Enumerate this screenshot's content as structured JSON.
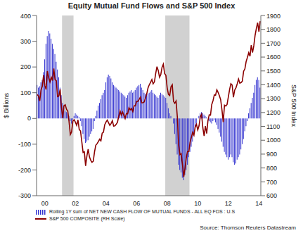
{
  "chart_data": {
    "type": "combo",
    "title": "Equity Mutual Fund Flows and S&P 500 Index",
    "y_label": "$ Billions",
    "y2_label": "S&P 500 Index",
    "source": "Source: Thomson Reuters Datastream",
    "legend": "bottom",
    "grid": false,
    "categories": [
      null,
      null,
      null,
      null,
      null,
      null,
      "00",
      null,
      null,
      null,
      null,
      null,
      null,
      null,
      null,
      null,
      null,
      null,
      null,
      null,
      null,
      null,
      null,
      null,
      null,
      null,
      null,
      null,
      null,
      null,
      "02",
      null,
      null,
      null,
      null,
      null,
      null,
      null,
      null,
      null,
      null,
      null,
      null,
      null,
      null,
      null,
      null,
      null,
      null,
      null,
      null,
      null,
      null,
      null,
      "04",
      null,
      null,
      null,
      null,
      null,
      null,
      null,
      null,
      null,
      null,
      null,
      null,
      null,
      null,
      null,
      null,
      null,
      null,
      null,
      null,
      null,
      null,
      null,
      "06",
      null,
      null,
      null,
      null,
      null,
      null,
      null,
      null,
      null,
      null,
      null,
      null,
      null,
      null,
      null,
      null,
      null,
      null,
      null,
      null,
      null,
      null,
      null,
      "08",
      null,
      null,
      null,
      null,
      null,
      null,
      null,
      null,
      null,
      null,
      null,
      null,
      null,
      null,
      null,
      null,
      null,
      null,
      null,
      null,
      null,
      null,
      null,
      "10",
      null,
      null,
      null,
      null,
      null,
      null,
      null,
      null,
      null,
      null,
      null,
      null,
      null,
      null,
      null,
      null,
      null,
      null,
      null,
      null,
      null,
      null,
      null,
      "12",
      null,
      null,
      null,
      null,
      null,
      null,
      null,
      null,
      null,
      null,
      null,
      null,
      null,
      null,
      null,
      null,
      null,
      null,
      null,
      null,
      null,
      null,
      null,
      "14",
      null
    ],
    "shaded_periods": [
      [
        20,
        28
      ],
      [
        101,
        119
      ]
    ],
    "ylim": [
      -300,
      400
    ],
    "yticks": [
      -300,
      -200,
      -100,
      0,
      100,
      200,
      300,
      400
    ],
    "y2lim": [
      600,
      1900
    ],
    "y2ticks": [
      600,
      700,
      800,
      900,
      1000,
      1100,
      1200,
      1300,
      1400,
      1500,
      1600,
      1700,
      1800,
      1900
    ],
    "series": [
      {
        "name": "Rolling 1Y sum of NET NEW CASH FLOW OF MUTUAL FUNDS - ALL EQ FDS : U.S",
        "type": "bar",
        "color": "#3434d0",
        "values": [
          130,
          120,
          125,
          140,
          150,
          180,
          230,
          290,
          320,
          340,
          330,
          310,
          290,
          270,
          250,
          220,
          190,
          160,
          120,
          90,
          60,
          40,
          30,
          25,
          20,
          10,
          -10,
          -20,
          -5,
          10,
          20,
          15,
          10,
          5,
          -10,
          -30,
          -60,
          -80,
          -95,
          -90,
          -85,
          -70,
          -60,
          -50,
          -40,
          -10,
          10,
          30,
          50,
          60,
          75,
          90,
          100,
          110,
          140,
          160,
          170,
          165,
          155,
          140,
          130,
          125,
          120,
          115,
          110,
          105,
          100,
          95,
          90,
          85,
          80,
          90,
          100,
          105,
          110,
          100,
          105,
          110,
          120,
          125,
          130,
          135,
          120,
          110,
          100,
          95,
          90,
          95,
          100,
          105,
          110,
          100,
          95,
          90,
          85,
          80,
          90,
          100,
          95,
          90,
          85,
          80,
          60,
          40,
          20,
          10,
          0,
          -20,
          -60,
          -100,
          -140,
          -180,
          -200,
          -210,
          -230,
          -240,
          -220,
          -200,
          -180,
          -150,
          -130,
          -110,
          -90,
          -60,
          -40,
          -20,
          0,
          10,
          20,
          25,
          20,
          15,
          10,
          5,
          0,
          -10,
          -15,
          -20,
          -10,
          -5,
          -15,
          -25,
          -40,
          -55,
          -70,
          -90,
          -110,
          -130,
          -140,
          -150,
          -160,
          -150,
          -140,
          -150,
          -170,
          -180,
          -175,
          -160,
          -150,
          -140,
          -120,
          -100,
          -80,
          -50,
          -30,
          -10,
          20,
          40,
          60,
          80,
          100,
          130,
          150,
          160,
          150,
          120
        ]
      },
      {
        "name": "S&P 500 COMPOSITE (RH Scale)",
        "type": "line",
        "axis": "y2",
        "color": "#8b0000",
        "values": [
          1329,
          1320,
          1283,
          1363,
          1389,
          1469,
          1394,
          1366,
          1499,
          1452,
          1421,
          1455,
          1431,
          1518,
          1437,
          1429,
          1315,
          1320,
          1366,
          1240,
          1160,
          1249,
          1256,
          1224,
          1211,
          1134,
          1041,
          1060,
          1139,
          1148,
          1130,
          1107,
          1147,
          1077,
          1067,
          990,
          912,
          916,
          815,
          886,
          936,
          880,
          856,
          841,
          848,
          917,
          964,
          975,
          990,
          1008,
          996,
          1051,
          1058,
          1112,
          1131,
          1145,
          1126,
          1107,
          1121,
          1141,
          1102,
          1104,
          1115,
          1130,
          1174,
          1212,
          1181,
          1204,
          1181,
          1157,
          1192,
          1191,
          1234,
          1220,
          1229,
          1207,
          1249,
          1248,
          1280,
          1281,
          1295,
          1311,
          1270,
          1270,
          1277,
          1304,
          1336,
          1378,
          1401,
          1418,
          1438,
          1407,
          1421,
          1482,
          1531,
          1503,
          1455,
          1474,
          1527,
          1549,
          1481,
          1468,
          1379,
          1331,
          1323,
          1386,
          1400,
          1280,
          1267,
          1283,
          1165,
          969,
          896,
          903,
          826,
          735,
          798,
          873,
          919,
          919,
          987,
          1021,
          1057,
          1036,
          1096,
          1115,
          1074,
          1104,
          1169,
          1187,
          1089,
          1031,
          1102,
          1049,
          1141,
          1183,
          1181,
          1258,
          1286,
          1327,
          1326,
          1364,
          1345,
          1321,
          1292,
          1219,
          1131,
          1253,
          1247,
          1258,
          1312,
          1366,
          1408,
          1398,
          1310,
          1362,
          1379,
          1407,
          1441,
          1412,
          1416,
          1426,
          1498,
          1515,
          1569,
          1598,
          1631,
          1606,
          1686,
          1633,
          1682,
          1757,
          1806,
          1848,
          1783,
          1859
        ]
      }
    ]
  }
}
